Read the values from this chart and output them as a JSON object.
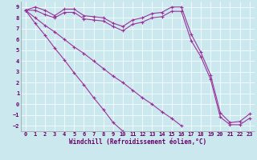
{
  "xlabel": "Windchill (Refroidissement éolien,°C)",
  "background_color": "#cce8ef",
  "grid_color": "#ffffff",
  "line_color": "#993399",
  "xlim": [
    -0.5,
    23.5
  ],
  "ylim": [
    -2.5,
    9.5
  ],
  "xticks": [
    0,
    1,
    2,
    3,
    4,
    5,
    6,
    7,
    8,
    9,
    10,
    11,
    12,
    13,
    14,
    15,
    16,
    17,
    18,
    19,
    20,
    21,
    22,
    23
  ],
  "yticks": [
    -2,
    -1,
    0,
    1,
    2,
    3,
    4,
    5,
    6,
    7,
    8,
    9
  ],
  "lines": [
    {
      "x": [
        0,
        1,
        2,
        3,
        4,
        5,
        6,
        7,
        8,
        9,
        10,
        11,
        12,
        13,
        14,
        15,
        16,
        17,
        18,
        19,
        20,
        21,
        22,
        23
      ],
      "y": [
        8.7,
        9.0,
        8.7,
        8.2,
        8.8,
        8.8,
        8.2,
        8.1,
        8.0,
        7.5,
        7.2,
        7.8,
        8.0,
        8.4,
        8.5,
        9.0,
        9.0,
        6.5,
        4.8,
        2.7,
        -0.8,
        -1.7,
        -1.6,
        -0.9
      ]
    },
    {
      "x": [
        0,
        1,
        2,
        3,
        4,
        5,
        6,
        7,
        8,
        9,
        10,
        11,
        12,
        13,
        14,
        15,
        16,
        17,
        18,
        19,
        20,
        21,
        22,
        23
      ],
      "y": [
        8.7,
        8.7,
        8.3,
        8.0,
        8.5,
        8.5,
        7.9,
        7.8,
        7.7,
        7.2,
        6.8,
        7.4,
        7.6,
        8.0,
        8.1,
        8.6,
        8.6,
        5.9,
        4.4,
        2.3,
        -1.2,
        -1.9,
        -1.9,
        -1.3
      ]
    },
    {
      "x": [
        0,
        1,
        2,
        3,
        4,
        5,
        6,
        7,
        8,
        9,
        10,
        11,
        12,
        13,
        14,
        15,
        16
      ],
      "y": [
        8.7,
        8.0,
        7.3,
        6.7,
        6.0,
        5.3,
        4.7,
        4.0,
        3.3,
        2.6,
        2.0,
        1.3,
        0.6,
        0.0,
        -0.7,
        -1.3,
        -2.0
      ]
    },
    {
      "x": [
        0,
        1,
        2,
        3,
        4,
        5,
        6,
        7,
        8,
        9,
        10
      ],
      "y": [
        8.7,
        7.5,
        6.4,
        5.2,
        4.1,
        2.9,
        1.8,
        0.6,
        -0.5,
        -1.7,
        -2.5
      ]
    }
  ]
}
